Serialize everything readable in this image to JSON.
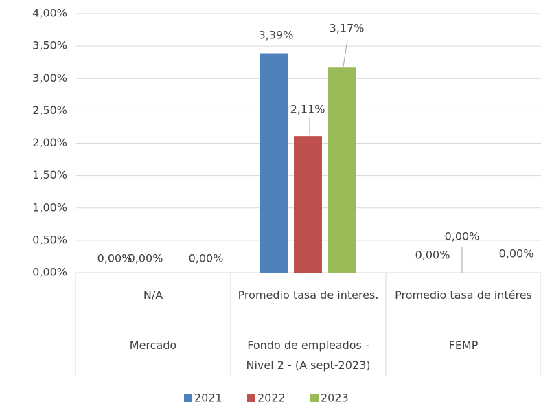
{
  "chart_data": {
    "type": "bar",
    "categories": [
      "N/A",
      "Promedio tasa de interes.",
      "Promedio tasa de intéres"
    ],
    "groups": [
      "Mercado",
      "Fondo de empleados - Nivel 2 - (A sept-2023)",
      "FEMP"
    ],
    "series": [
      {
        "name": "2021",
        "color": "#4f81bd",
        "values": [
          0,
          3.39,
          0
        ],
        "value_labels": [
          "0,00%",
          "3,39%",
          "0,00%"
        ]
      },
      {
        "name": "2022",
        "color": "#c0504d",
        "values": [
          0,
          2.11,
          0
        ],
        "value_labels": [
          "0,00%",
          "2,11%",
          "0,00%"
        ]
      },
      {
        "name": "2023",
        "color": "#9bbb59",
        "values": [
          0,
          3.17,
          0
        ],
        "value_labels": [
          "0,00%",
          "3,17%",
          "0,00%"
        ]
      }
    ],
    "ylim": [
      0,
      4
    ],
    "yticks": [
      {
        "value": 0,
        "label": "0,00%"
      },
      {
        "value": 0.5,
        "label": "0,50%"
      },
      {
        "value": 1,
        "label": "1,00%"
      },
      {
        "value": 1.5,
        "label": "1,50%"
      },
      {
        "value": 2,
        "label": "2,00%"
      },
      {
        "value": 2.5,
        "label": "2,50%"
      },
      {
        "value": 3,
        "label": "3,00%"
      },
      {
        "value": 3.5,
        "label": "3,50%"
      },
      {
        "value": 4,
        "label": "4,00%"
      }
    ],
    "grid": true,
    "legend": "bottom"
  }
}
